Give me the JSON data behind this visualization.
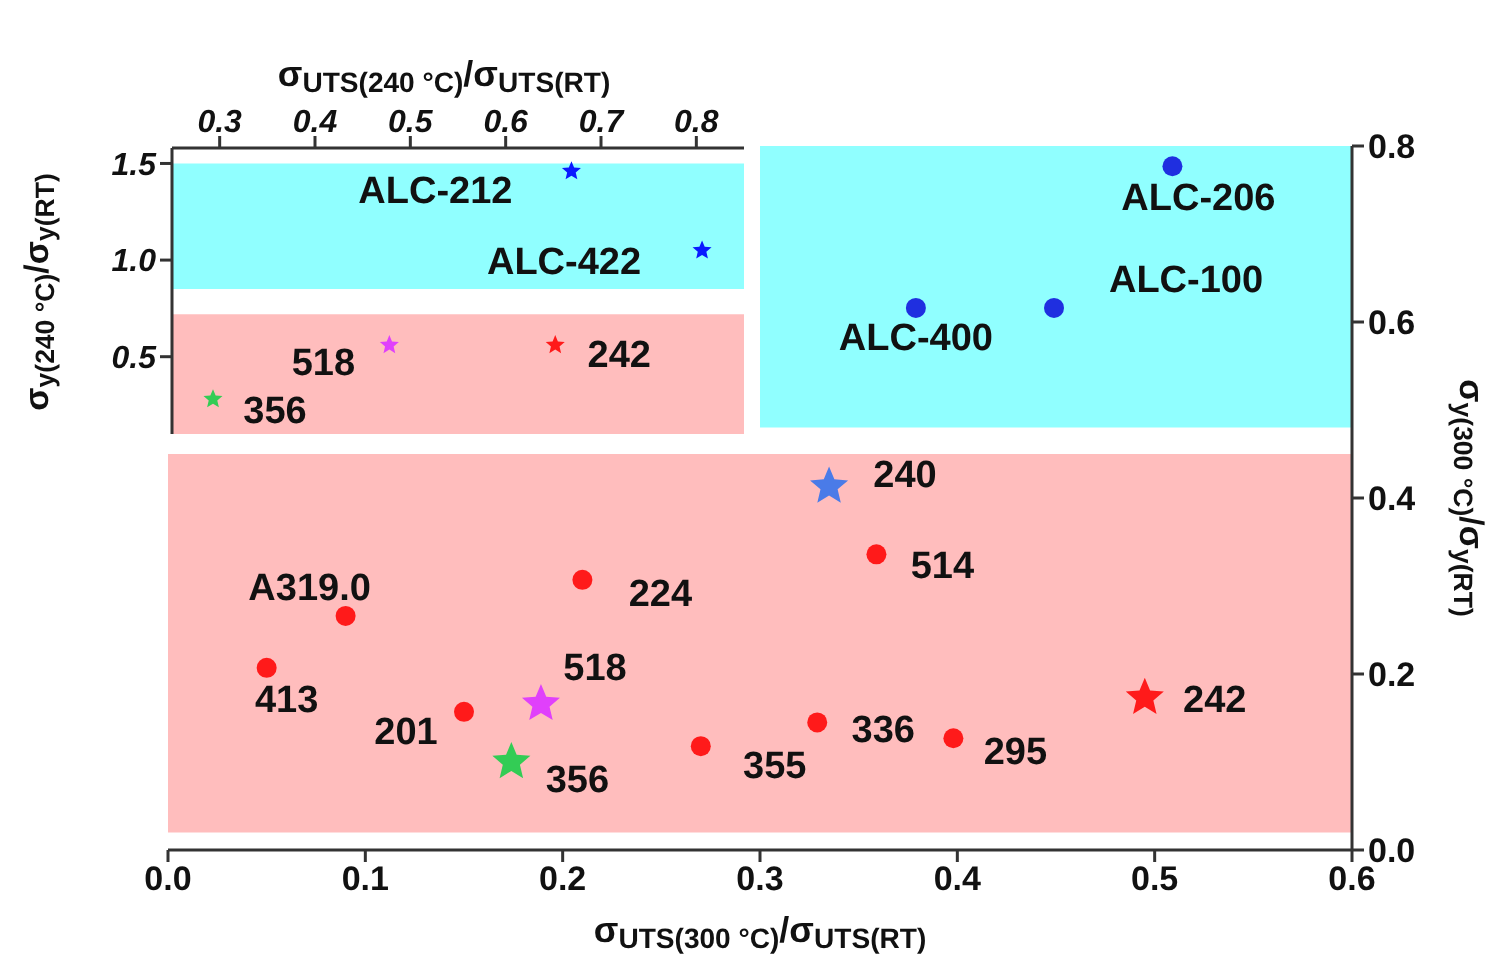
{
  "chart_data": [
    {
      "type": "scatter",
      "xlabel": "σ$_{UTS(300 °C)}$/σ$_{UTS(RT)}$",
      "ylabel": "σ$_{y(300 °C)}$/σ$_{y(RT)}$",
      "xlim": [
        0,
        0.6
      ],
      "xticks": [
        {
          "value": 0,
          "label": "0.0"
        },
        0.1,
        0.2,
        0.3,
        0.4,
        0.5,
        0.6
      ],
      "ylim": [
        0,
        0.8
      ],
      "yticks": [
        {
          "value": 0,
          "label": "0.0"
        },
        0.2,
        0.4,
        0.6,
        0.8
      ],
      "bands": [
        {
          "axis": "y",
          "from": 0.02,
          "to": 0.45,
          "color": "#ff9a9a"
        },
        {
          "axis": "y",
          "from": 0.48,
          "to": 0.8,
          "color": "#55ffff"
        }
      ],
      "series": [
        {
          "color": "#ff1a1a",
          "marker": "circle",
          "x": [
            0.05,
            0.09,
            0.15,
            0.21,
            0.27,
            0.329,
            0.359,
            0.398
          ],
          "values": [
            0.207,
            0.266,
            0.157,
            0.307,
            0.118,
            0.145,
            0.336,
            0.127
          ]
        },
        {
          "color": "#1f2fe0",
          "marker": "circle",
          "x": [
            0.379,
            0.449,
            0.509
          ],
          "values": [
            0.616,
            0.616,
            0.777
          ]
        },
        {
          "color": "#33cc55",
          "marker": "star",
          "x": [
            0.174
          ],
          "values": [
            0.1
          ]
        },
        {
          "color": "#e040fb",
          "marker": "star",
          "x": [
            0.189
          ],
          "values": [
            0.166
          ]
        },
        {
          "color": "#4a7be8",
          "marker": "star",
          "x": [
            0.335
          ],
          "values": [
            0.413
          ]
        },
        {
          "color": "#ff1a1a",
          "marker": "star",
          "x": [
            0.495
          ],
          "values": [
            0.173
          ]
        }
      ],
      "annotations": [
        {
          "text": "413",
          "x": 0.05,
          "y": 0.207
        },
        {
          "text": "A319.0",
          "x": 0.09,
          "y": 0.266
        },
        {
          "text": "201",
          "x": 0.15,
          "y": 0.157
        },
        {
          "text": "224",
          "x": 0.21,
          "y": 0.307
        },
        {
          "text": "355",
          "x": 0.27,
          "y": 0.118
        },
        {
          "text": "336",
          "x": 0.329,
          "y": 0.145
        },
        {
          "text": "514",
          "x": 0.359,
          "y": 0.336
        },
        {
          "text": "295",
          "x": 0.398,
          "y": 0.127
        },
        {
          "text": "ALC-400",
          "x": 0.379,
          "y": 0.616
        },
        {
          "text": "ALC-100",
          "x": 0.449,
          "y": 0.616
        },
        {
          "text": "ALC-206",
          "x": 0.509,
          "y": 0.777
        },
        {
          "text": "356",
          "x": 0.174,
          "y": 0.1
        },
        {
          "text": "518",
          "x": 0.189,
          "y": 0.166
        },
        {
          "text": "240",
          "x": 0.335,
          "y": 0.413
        },
        {
          "text": "242",
          "x": 0.495,
          "y": 0.173
        }
      ]
    },
    {
      "type": "scatter",
      "xlabel": "σ$_{UTS(240 °C)}$/σ$_{UTS(RT)}$",
      "ylabel": "σ$_{y(240 °C)}$/σ$_{y(RT)}$",
      "xlim": [
        0.25,
        0.85
      ],
      "xticks": [
        0.3,
        0.4,
        0.5,
        0.6,
        0.7,
        0.8
      ],
      "ylim": [
        0.1,
        1.58
      ],
      "yticks": [
        0.5,
        {
          "value": 1,
          "label": "1.0"
        },
        1.5
      ],
      "bands": [
        {
          "axis": "y",
          "from": 0.1,
          "to": 0.72,
          "color": "#ff9a9a"
        },
        {
          "axis": "y",
          "from": 0.85,
          "to": 1.5,
          "color": "#55ffff"
        }
      ],
      "series": [
        {
          "color": "#0a1aff",
          "marker": "star",
          "x": [
            0.669,
            0.806
          ],
          "values": [
            1.46,
            1.05
          ]
        },
        {
          "color": "#e040fb",
          "marker": "star",
          "x": [
            0.478
          ],
          "values": [
            0.56
          ]
        },
        {
          "color": "#ff1a1a",
          "marker": "star",
          "x": [
            0.652
          ],
          "values": [
            0.56
          ]
        },
        {
          "color": "#33cc55",
          "marker": "star",
          "x": [
            0.293
          ],
          "values": [
            0.28
          ]
        }
      ],
      "annotations": [
        {
          "text": "ALC-212",
          "x": 0.669,
          "y": 1.46
        },
        {
          "text": "ALC-422",
          "x": 0.806,
          "y": 1.05
        },
        {
          "text": "518",
          "x": 0.478,
          "y": 0.56
        },
        {
          "text": "242",
          "x": 0.652,
          "y": 0.56
        },
        {
          "text": "356",
          "x": 0.293,
          "y": 0.28
        }
      ]
    }
  ]
}
